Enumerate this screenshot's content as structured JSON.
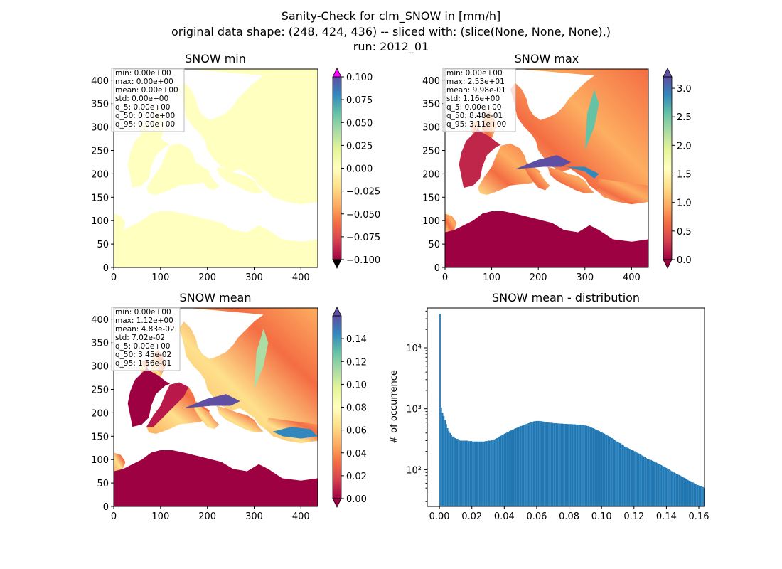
{
  "figure": {
    "title_lines": [
      "Sanity-Check for clm_SNOW in [mm/h]",
      "original data shape: (248, 424, 436) -- sliced with: (slice(None, None, None),)",
      "run: 2012_01"
    ]
  },
  "chart_data": [
    {
      "type": "heatmap",
      "title": "SNOW min",
      "xlim": [
        0,
        436
      ],
      "ylim": [
        0,
        424
      ],
      "xticks": [
        "0",
        "100",
        "200",
        "300",
        "400"
      ],
      "yticks": [
        "0",
        "50",
        "100",
        "150",
        "200",
        "250",
        "300",
        "350",
        "400"
      ],
      "colormap": "Spectral",
      "colorbar": {
        "range": [
          -0.1,
          0.1
        ],
        "ticks": [
          "0.100",
          "0.075",
          "0.050",
          "0.025",
          "0.000",
          "−0.025",
          "−0.050",
          "−0.075",
          "−0.100"
        ],
        "extend": "both",
        "over_color": "#ff00ff",
        "under_color": "#000000"
      },
      "stats": [
        "min: 0.00e+00",
        "max: 0.00e+00",
        "mean: 0.00e+00",
        "std: 0.00e+00",
        "q_5: 0.00e+00",
        "q_50: 0.00e+00",
        "q_95: 0.00e+00"
      ]
    },
    {
      "type": "heatmap",
      "title": "SNOW max",
      "xlim": [
        0,
        436
      ],
      "ylim": [
        0,
        424
      ],
      "xticks": [
        "0",
        "100",
        "200",
        "300",
        "400"
      ],
      "yticks": [
        "0",
        "50",
        "100",
        "150",
        "200",
        "250",
        "300",
        "350",
        "400"
      ],
      "colormap": "Spectral",
      "colorbar": {
        "range": [
          0,
          3.2
        ],
        "ticks": [
          "3.0",
          "2.5",
          "2.0",
          "1.5",
          "1.0",
          "0.5",
          "0.0"
        ],
        "extend": "both"
      },
      "stats": [
        "min: 0.00e+00",
        "max: 2.53e+01",
        "mean: 9.98e-01",
        "std: 1.16e+00",
        "q_5: 0.00e+00",
        "q_50: 8.48e-01",
        "q_95: 3.11e+00"
      ]
    },
    {
      "type": "heatmap",
      "title": "SNOW mean",
      "xlim": [
        0,
        436
      ],
      "ylim": [
        0,
        424
      ],
      "xticks": [
        "0",
        "100",
        "200",
        "300",
        "400"
      ],
      "yticks": [
        "0",
        "50",
        "100",
        "150",
        "200",
        "250",
        "300",
        "350",
        "400"
      ],
      "colormap": "Spectral",
      "colorbar": {
        "range": [
          0,
          0.16
        ],
        "ticks": [
          "0.14",
          "0.12",
          "0.10",
          "0.08",
          "0.06",
          "0.04",
          "0.02",
          "0.00"
        ],
        "extend": "both"
      },
      "stats": [
        "min: 0.00e+00",
        "max: 1.12e+00",
        "mean: 4.83e-02",
        "std: 7.02e-02",
        "q_5: 0.00e+00",
        "q_50: 3.45e-02",
        "q_95: 1.56e-01"
      ]
    },
    {
      "type": "bar",
      "title": "SNOW mean - distribution",
      "ylabel": "# of occurrence",
      "yscale": "log",
      "xlim": [
        -0.0075,
        0.1635
      ],
      "ylim": [
        25,
        45000
      ],
      "xticks": [
        "0.00",
        "0.02",
        "0.04",
        "0.06",
        "0.08",
        "0.10",
        "0.12",
        "0.14",
        "0.16"
      ],
      "ytick_labels": [
        "10²",
        "10³",
        "10⁴"
      ],
      "color": "#1f77b4",
      "bin_start": 0.0,
      "bin_width": 0.00078,
      "values": [
        36000,
        1050,
        860,
        760,
        650,
        560,
        480,
        430,
        400,
        370,
        350,
        340,
        330,
        320,
        320,
        310,
        300,
        300,
        300,
        300,
        300,
        300,
        300,
        295,
        295,
        295,
        290,
        290,
        290,
        290,
        290,
        290,
        290,
        290,
        290,
        290,
        295,
        295,
        300,
        300,
        300,
        305,
        310,
        315,
        320,
        330,
        340,
        350,
        360,
        370,
        380,
        390,
        400,
        410,
        420,
        430,
        440,
        450,
        460,
        470,
        480,
        490,
        500,
        510,
        520,
        530,
        540,
        550,
        560,
        570,
        580,
        590,
        600,
        610,
        620,
        625,
        630,
        630,
        630,
        630,
        625,
        620,
        615,
        610,
        600,
        600,
        595,
        590,
        590,
        585,
        580,
        580,
        580,
        575,
        575,
        570,
        570,
        570,
        565,
        565,
        565,
        560,
        560,
        560,
        560,
        555,
        555,
        555,
        550,
        550,
        545,
        545,
        540,
        540,
        535,
        530,
        525,
        520,
        510,
        500,
        490,
        480,
        470,
        460,
        450,
        440,
        430,
        420,
        410,
        400,
        390,
        380,
        370,
        360,
        350,
        340,
        330,
        320,
        310,
        300,
        290,
        280,
        275,
        270,
        260,
        250,
        240,
        235,
        230,
        225,
        220,
        215,
        210,
        205,
        200,
        195,
        190,
        185,
        180,
        175,
        170,
        165,
        160,
        155,
        150,
        148,
        146,
        144,
        140,
        137,
        134,
        131,
        128,
        125,
        122,
        119,
        116,
        113,
        110,
        107,
        104,
        101,
        98,
        95,
        92,
        90,
        88,
        86,
        84,
        82,
        80,
        78,
        76,
        74,
        72,
        70,
        68,
        66,
        65,
        64,
        62,
        60,
        58,
        57,
        56,
        55,
        54,
        53,
        52,
        50
      ]
    }
  ]
}
